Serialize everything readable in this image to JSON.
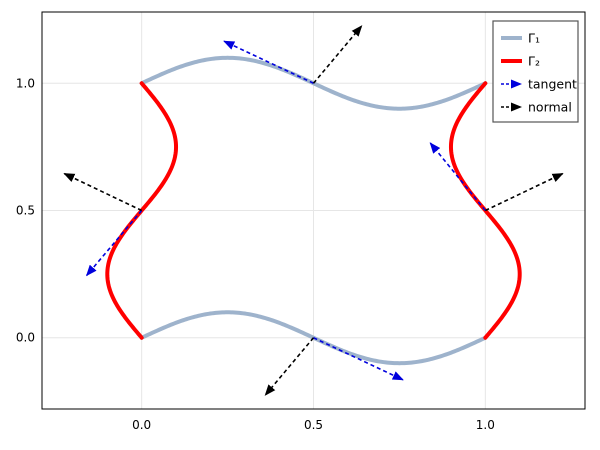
{
  "chart_data": {
    "type": "line",
    "xlim": [
      -0.29,
      1.29
    ],
    "ylim": [
      -0.28,
      1.28
    ],
    "x_ticks": [
      0.0,
      0.5,
      1.0
    ],
    "x_tick_labels": [
      "0.0",
      "0.5",
      "1.0"
    ],
    "y_ticks": [
      0.0,
      0.5,
      1.0
    ],
    "y_tick_labels": [
      "0.0",
      "0.5",
      "1.0"
    ],
    "grid": true,
    "legend_position": "top-right",
    "colors": {
      "gamma1": "#9eb3cc",
      "gamma2": "#ff0000",
      "tangent": "#0000dd",
      "normal": "#000000",
      "grid": "#e6e6e6",
      "frame": "#000000"
    },
    "curves": [
      {
        "legend": "Γ₁",
        "role": "gamma1",
        "equation": "y = 1 + 0.1*sin(2πx), x ∈ [0,1]"
      },
      {
        "legend": "Γ₁",
        "role": "gamma1",
        "equation": "y = 0.1*sin(2πx), x ∈ [0,1]"
      },
      {
        "legend": "Γ₂",
        "role": "gamma2",
        "equation": "x = -0.1*sin(2πy), y ∈ [0,1]"
      },
      {
        "legend": "Γ₂",
        "role": "gamma2",
        "equation": "x = 1 + 0.1*sin(2πy), y ∈ [0,1]"
      }
    ],
    "sample_points": {
      "gamma1_top": [
        [
          0,
          1.0
        ],
        [
          0.125,
          1.0707
        ],
        [
          0.25,
          1.1
        ],
        [
          0.375,
          1.0707
        ],
        [
          0.5,
          1.0
        ],
        [
          0.625,
          0.9293
        ],
        [
          0.75,
          0.9
        ],
        [
          0.875,
          0.9293
        ],
        [
          1.0,
          1.0
        ]
      ],
      "gamma1_bottom": [
        [
          0,
          0.0
        ],
        [
          0.125,
          0.0707
        ],
        [
          0.25,
          0.1
        ],
        [
          0.375,
          0.0707
        ],
        [
          0.5,
          0.0
        ],
        [
          0.625,
          -0.0707
        ],
        [
          0.75,
          -0.1
        ],
        [
          0.875,
          -0.0707
        ],
        [
          1.0,
          0.0
        ]
      ],
      "gamma2_left": [
        [
          0.0,
          0
        ],
        [
          -0.0707,
          0.125
        ],
        [
          -0.1,
          0.25
        ],
        [
          -0.0707,
          0.375
        ],
        [
          0.0,
          0.5
        ],
        [
          0.0707,
          0.625
        ],
        [
          0.1,
          0.75
        ],
        [
          0.0707,
          0.875
        ],
        [
          0.0,
          1.0
        ]
      ],
      "gamma2_right": [
        [
          1.0,
          0
        ],
        [
          1.0707,
          0.125
        ],
        [
          1.1,
          0.25
        ],
        [
          1.0707,
          0.375
        ],
        [
          1.0,
          0.5
        ],
        [
          0.9293,
          0.625
        ],
        [
          0.9,
          0.75
        ],
        [
          0.9293,
          0.875
        ],
        [
          1.0,
          1.0
        ]
      ]
    },
    "arrows": {
      "tangent": [
        {
          "from": [
            0.5,
            1.0
          ],
          "to": [
            0.24,
            1.165
          ]
        },
        {
          "from": [
            0.5,
            0.0
          ],
          "to": [
            0.76,
            -0.165
          ]
        },
        {
          "from": [
            0.0,
            0.5
          ],
          "to": [
            -0.16,
            0.245
          ]
        },
        {
          "from": [
            1.0,
            0.5
          ],
          "to": [
            0.84,
            0.765
          ]
        }
      ],
      "normal": [
        {
          "from": [
            0.5,
            1.0
          ],
          "to": [
            0.64,
            1.225
          ]
        },
        {
          "from": [
            0.5,
            0.0
          ],
          "to": [
            0.36,
            -0.225
          ]
        },
        {
          "from": [
            0.0,
            0.5
          ],
          "to": [
            -0.225,
            0.645
          ]
        },
        {
          "from": [
            1.0,
            0.5
          ],
          "to": [
            1.225,
            0.645
          ]
        }
      ]
    },
    "legend": [
      {
        "label": "Γ₁",
        "role": "gamma1",
        "style": "solid"
      },
      {
        "label": "Γ₂",
        "role": "gamma2",
        "style": "solid"
      },
      {
        "label": "tangent",
        "role": "tangent",
        "style": "dashed-arrow"
      },
      {
        "label": "normal",
        "role": "normal",
        "style": "dashed-arrow"
      }
    ]
  }
}
